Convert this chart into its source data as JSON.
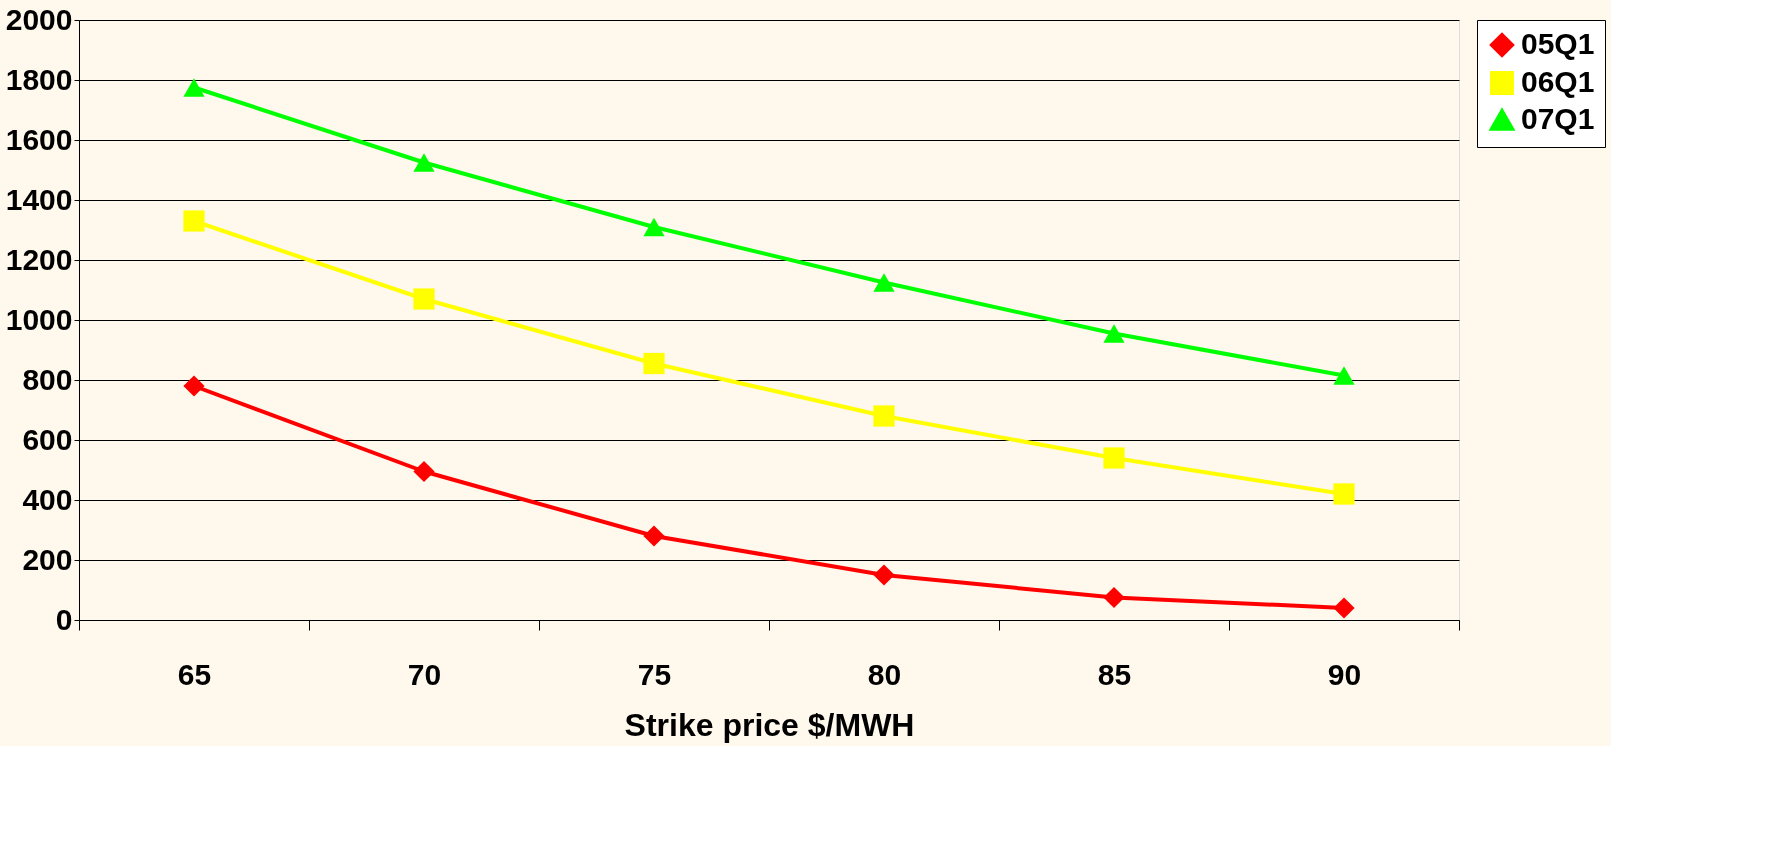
{
  "chart_data": {
    "type": "line",
    "xlabel": "Strike price $/MWH",
    "categories": [
      "65",
      "70",
      "75",
      "80",
      "85",
      "90"
    ],
    "ylim": [
      0,
      2000
    ],
    "yticks": [
      0,
      200,
      400,
      600,
      800,
      1000,
      1200,
      1400,
      1600,
      1800,
      2000
    ],
    "grid": "y",
    "legend": "right",
    "line_style": "solid",
    "series": [
      {
        "name": "05Q1",
        "color": "#ff0000",
        "marker": "diamond",
        "values": [
          780,
          495,
          280,
          150,
          75,
          40
        ]
      },
      {
        "name": "06Q1",
        "color": "#ffff00",
        "marker": "square",
        "values": [
          1330,
          1070,
          855,
          680,
          540,
          420
        ]
      },
      {
        "name": "07Q1",
        "color": "#00ff00",
        "marker": "triangle",
        "values": [
          1775,
          1525,
          1310,
          1125,
          955,
          815
        ]
      }
    ]
  }
}
